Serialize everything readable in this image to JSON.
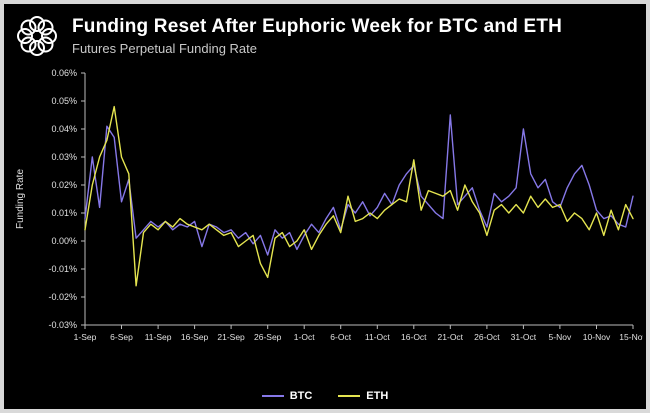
{
  "header": {
    "title": "Funding Reset After Euphoric Week for BTC and ETH",
    "subtitle": "Futures Perpetual Funding Rate"
  },
  "colors": {
    "background": "#000000",
    "frame_border": "#d9d9d9",
    "axis": "#bbbbbb",
    "tick_text": "#e0e0e0",
    "title_text": "#ffffff",
    "subtitle_text": "#c9c9c9"
  },
  "chart_data": {
    "type": "line",
    "title": "Funding Reset After Euphoric Week for BTC and ETH",
    "subtitle": "Futures Perpetual Funding Rate",
    "xlabel": "",
    "ylabel": "Funding Rate",
    "ylim": [
      -0.03,
      0.06
    ],
    "grid": false,
    "legend_position": "bottom-center",
    "background": "#000000",
    "y_tick_values": [
      0.06,
      0.05,
      0.04,
      0.03,
      0.02,
      0.01,
      0.0,
      -0.01,
      -0.02,
      -0.03
    ],
    "y_tick_labels": [
      "0.06%",
      "0.05%",
      "0.04%",
      "0.03%",
      "0.02%",
      "0.01%",
      "0.00%",
      "-0.01%",
      "-0.02%",
      "-0.03%"
    ],
    "x_tick_labels": [
      "1-Sep",
      "6-Sep",
      "11-Sep",
      "16-Sep",
      "21-Sep",
      "26-Sep",
      "1-Oct",
      "6-Oct",
      "11-Oct",
      "16-Oct",
      "21-Oct",
      "26-Oct",
      "31-Oct",
      "5-Nov",
      "10-Nov",
      "15-Nov"
    ],
    "x_tick_every": 5,
    "points_per_series": 76,
    "series": [
      {
        "name": "BTC",
        "color": "#8678e8",
        "values": [
          0.008,
          0.03,
          0.012,
          0.041,
          0.037,
          0.014,
          0.022,
          0.001,
          0.004,
          0.007,
          0.005,
          0.007,
          0.004,
          0.006,
          0.005,
          0.007,
          -0.002,
          0.006,
          0.005,
          0.003,
          0.004,
          0.001,
          0.003,
          -0.001,
          0.002,
          -0.005,
          0.004,
          0.001,
          0.003,
          -0.003,
          0.002,
          0.006,
          0.003,
          0.008,
          0.012,
          0.004,
          0.013,
          0.01,
          0.014,
          0.009,
          0.012,
          0.017,
          0.013,
          0.02,
          0.024,
          0.027,
          0.016,
          0.013,
          0.01,
          0.008,
          0.045,
          0.013,
          0.016,
          0.019,
          0.011,
          0.005,
          0.017,
          0.014,
          0.016,
          0.019,
          0.04,
          0.024,
          0.019,
          0.022,
          0.014,
          0.012,
          0.019,
          0.024,
          0.027,
          0.02,
          0.011,
          0.008,
          0.009,
          0.006,
          0.005,
          0.016
        ]
      },
      {
        "name": "ETH",
        "color": "#e5e550",
        "values": [
          0.004,
          0.02,
          0.03,
          0.036,
          0.048,
          0.03,
          0.024,
          -0.016,
          0.003,
          0.006,
          0.004,
          0.007,
          0.005,
          0.008,
          0.006,
          0.005,
          0.004,
          0.006,
          0.004,
          0.002,
          0.003,
          -0.002,
          0.0,
          0.002,
          -0.008,
          -0.013,
          0.001,
          0.003,
          -0.002,
          0.0,
          0.004,
          -0.003,
          0.002,
          0.006,
          0.009,
          0.003,
          0.016,
          0.007,
          0.008,
          0.01,
          0.008,
          0.011,
          0.013,
          0.015,
          0.014,
          0.029,
          0.011,
          0.018,
          0.017,
          0.016,
          0.018,
          0.011,
          0.02,
          0.014,
          0.01,
          0.002,
          0.011,
          0.013,
          0.01,
          0.013,
          0.01,
          0.016,
          0.012,
          0.015,
          0.012,
          0.013,
          0.007,
          0.01,
          0.008,
          0.004,
          0.01,
          0.002,
          0.011,
          0.004,
          0.013,
          0.008
        ]
      }
    ]
  }
}
